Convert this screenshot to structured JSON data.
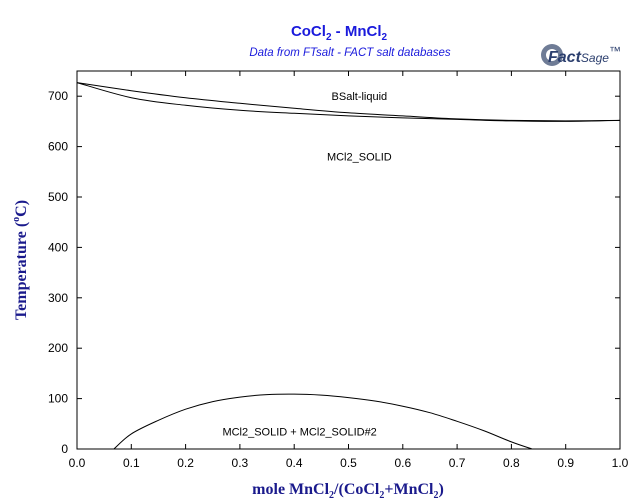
{
  "header": {
    "title": {
      "p1": "CoCl",
      "p2": "2",
      "p3": " - MnCl",
      "p4": "2"
    },
    "subtitle": "Data from FTsalt - FACT salt databases",
    "logo": {
      "word1": "Fact",
      "word2": "Sage",
      "mark": "™"
    }
  },
  "chart_data": {
    "type": "line",
    "xlabel": {
      "p1": "mole MnCl",
      "p2": "2",
      "p3": "/(CoCl",
      "p4": "2",
      "p5": "+MnCl",
      "p6": "2",
      "p7": ")"
    },
    "ylabel": {
      "p1": "Temperature (",
      "p2": "o",
      "p3": "C)"
    },
    "xlim": [
      0,
      1
    ],
    "ylim": [
      0,
      750
    ],
    "x_ticks": [
      "0.0",
      "0.1",
      "0.2",
      "0.3",
      "0.4",
      "0.5",
      "0.6",
      "0.7",
      "0.8",
      "0.9",
      "1.0"
    ],
    "y_ticks": [
      "0",
      "100",
      "200",
      "300",
      "400",
      "500",
      "600",
      "700"
    ],
    "grid": false,
    "regions": [
      {
        "label": "BSalt-liquid",
        "x": 0.52,
        "y": 700
      },
      {
        "label": "MCl2_SOLID",
        "x": 0.52,
        "y": 580
      },
      {
        "label": "MCl2_SOLID + MCl2_SOLID#2",
        "x": 0.41,
        "y": 35
      }
    ],
    "series": [
      {
        "x": [
          0.0,
          0.1,
          0.2,
          0.3,
          0.4,
          0.5,
          0.6,
          0.7,
          0.8,
          0.9,
          1.0
        ],
        "y": [
          727,
          711,
          697,
          686,
          676,
          667,
          661,
          655,
          652,
          651,
          652
        ]
      },
      {
        "x": [
          0.0,
          0.1,
          0.2,
          0.3,
          0.4,
          0.5,
          0.6,
          0.7,
          0.8,
          0.9,
          1.0
        ],
        "y": [
          727,
          697,
          682,
          672,
          666,
          661,
          657,
          654,
          651,
          650,
          652
        ]
      },
      {
        "x": [
          0.068,
          0.1,
          0.15,
          0.2,
          0.25,
          0.3,
          0.35,
          0.4,
          0.45,
          0.5,
          0.55,
          0.6,
          0.65,
          0.7,
          0.75,
          0.8,
          0.838
        ],
        "y": [
          0,
          30,
          57,
          79,
          94,
          103,
          108,
          109,
          107,
          102,
          95,
          85,
          72,
          55,
          36,
          14,
          0
        ]
      }
    ]
  }
}
